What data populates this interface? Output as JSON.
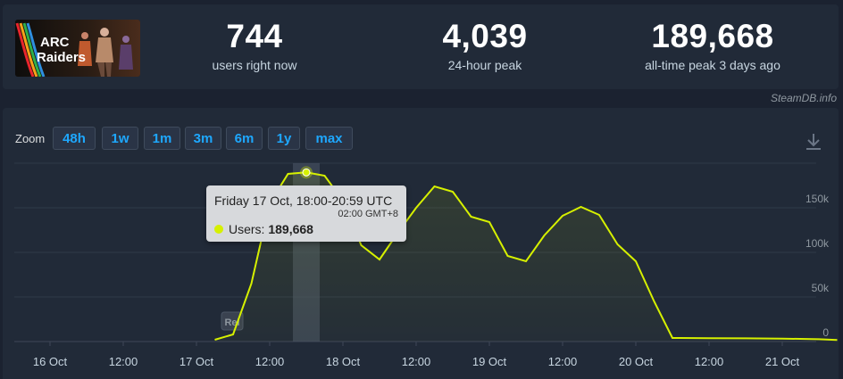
{
  "header": {
    "logo_text": "ARC Raiders",
    "stats": {
      "now": {
        "value": "744",
        "label": "users right now"
      },
      "peak24": {
        "value": "4,039",
        "label": "24-hour peak"
      },
      "alltime": {
        "value": "189,668",
        "label": "all-time peak 3 days ago"
      }
    },
    "source": "SteamDB.info"
  },
  "zoom": {
    "label": "Zoom",
    "buttons": [
      "48h",
      "1w",
      "1m",
      "3m",
      "6m",
      "1y",
      "max"
    ]
  },
  "icons": {
    "download": "download-icon"
  },
  "tooltip": {
    "date": "Friday 17 Oct, 18:00-20:59 UTC",
    "local": "02:00 GMT+8",
    "series": "Users:",
    "value": "189,668"
  },
  "colors": {
    "line": "#d6f000",
    "background": "#1b2230",
    "panel": "#212a38",
    "accent": "#1ea7fd"
  },
  "chart_data": {
    "type": "line",
    "x_ticks": [
      "16 Oct",
      "12:00",
      "17 Oct",
      "12:00",
      "18 Oct",
      "12:00",
      "19 Oct",
      "12:00",
      "20 Oct",
      "12:00",
      "21 Oct"
    ],
    "y_ticks": [
      "0",
      "50k",
      "100k",
      "150k"
    ],
    "ylim": [
      0,
      200000
    ],
    "annotation": "Rel",
    "series": [
      {
        "name": "Users",
        "points": [
          {
            "x": "17 Oct 03:00",
            "y": 2000
          },
          {
            "x": "17 Oct 06:00",
            "y": 8000
          },
          {
            "x": "17 Oct 09:00",
            "y": 65000
          },
          {
            "x": "17 Oct 12:00",
            "y": 155000
          },
          {
            "x": "17 Oct 15:00",
            "y": 188000
          },
          {
            "x": "17 Oct 18:00",
            "y": 189668
          },
          {
            "x": "17 Oct 21:00",
            "y": 186000
          },
          {
            "x": "18 Oct 00:00",
            "y": 158000
          },
          {
            "x": "18 Oct 03:00",
            "y": 108000
          },
          {
            "x": "18 Oct 06:00",
            "y": 92000
          },
          {
            "x": "18 Oct 09:00",
            "y": 122000
          },
          {
            "x": "18 Oct 12:00",
            "y": 150000
          },
          {
            "x": "18 Oct 15:00",
            "y": 174000
          },
          {
            "x": "18 Oct 18:00",
            "y": 168000
          },
          {
            "x": "18 Oct 21:00",
            "y": 140000
          },
          {
            "x": "19 Oct 00:00",
            "y": 134000
          },
          {
            "x": "19 Oct 03:00",
            "y": 96000
          },
          {
            "x": "19 Oct 06:00",
            "y": 90000
          },
          {
            "x": "19 Oct 09:00",
            "y": 119000
          },
          {
            "x": "19 Oct 12:00",
            "y": 141000
          },
          {
            "x": "19 Oct 15:00",
            "y": 151000
          },
          {
            "x": "19 Oct 18:00",
            "y": 142000
          },
          {
            "x": "19 Oct 21:00",
            "y": 109000
          },
          {
            "x": "20 Oct 00:00",
            "y": 90000
          },
          {
            "x": "20 Oct 03:00",
            "y": 45000
          },
          {
            "x": "20 Oct 06:00",
            "y": 4000
          },
          {
            "x": "20 Oct 12:00",
            "y": 3800
          },
          {
            "x": "20 Oct 18:00",
            "y": 3600
          },
          {
            "x": "21 Oct 00:00",
            "y": 3300
          },
          {
            "x": "21 Oct 06:00",
            "y": 2600
          },
          {
            "x": "21 Oct 09:00",
            "y": 1800
          }
        ]
      }
    ]
  }
}
